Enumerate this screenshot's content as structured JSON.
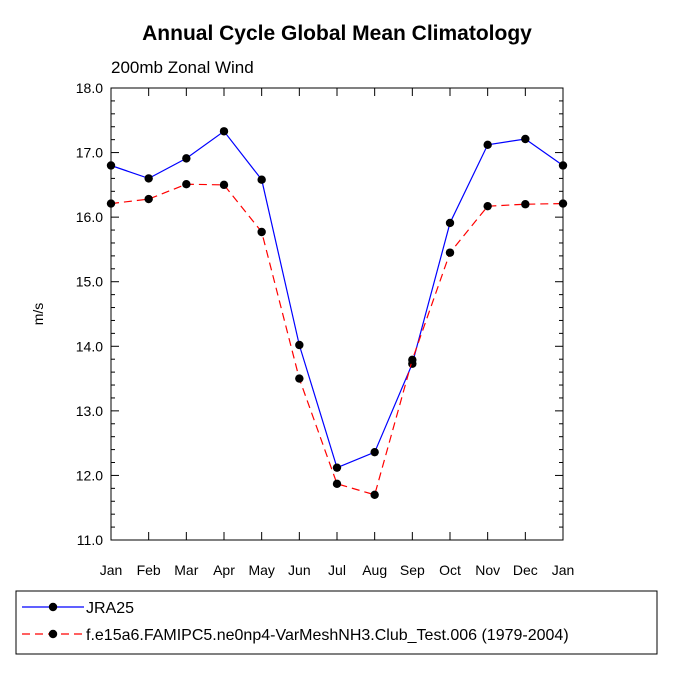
{
  "chart_data": {
    "type": "line",
    "title": "Annual Cycle Global Mean Climatology",
    "subtitle": "200mb Zonal Wind",
    "ylabel": "m/s",
    "xlabel": "",
    "categories": [
      "Jan",
      "Feb",
      "Mar",
      "Apr",
      "May",
      "Jun",
      "Jul",
      "Aug",
      "Sep",
      "Oct",
      "Nov",
      "Dec",
      "Jan"
    ],
    "ylim": [
      11.0,
      18.0
    ],
    "yticks": [
      11.0,
      12.0,
      13.0,
      14.0,
      15.0,
      16.0,
      17.0,
      18.0
    ],
    "ytick_labels": [
      "11.0",
      "12.0",
      "13.0",
      "14.0",
      "15.0",
      "16.0",
      "17.0",
      "18.0"
    ],
    "grid": false,
    "series": [
      {
        "name": "JRA25",
        "color": "#0000ff",
        "dash": "solid",
        "marker": "filled-circle",
        "values": [
          16.8,
          16.6,
          16.91,
          17.33,
          16.58,
          14.02,
          12.12,
          12.36,
          13.73,
          15.91,
          17.12,
          17.21,
          16.8
        ]
      },
      {
        "name": "f.e15a6.FAMIPC5.ne0np4-VarMeshNH3.Club_Test.006 (1979-2004)",
        "color": "#ff0000",
        "dash": "dashed",
        "marker": "filled-circle",
        "values": [
          16.21,
          16.28,
          16.51,
          16.5,
          15.77,
          13.5,
          11.87,
          11.7,
          13.79,
          15.45,
          16.17,
          16.2,
          16.21
        ]
      }
    ],
    "legend_position": "bottom"
  }
}
